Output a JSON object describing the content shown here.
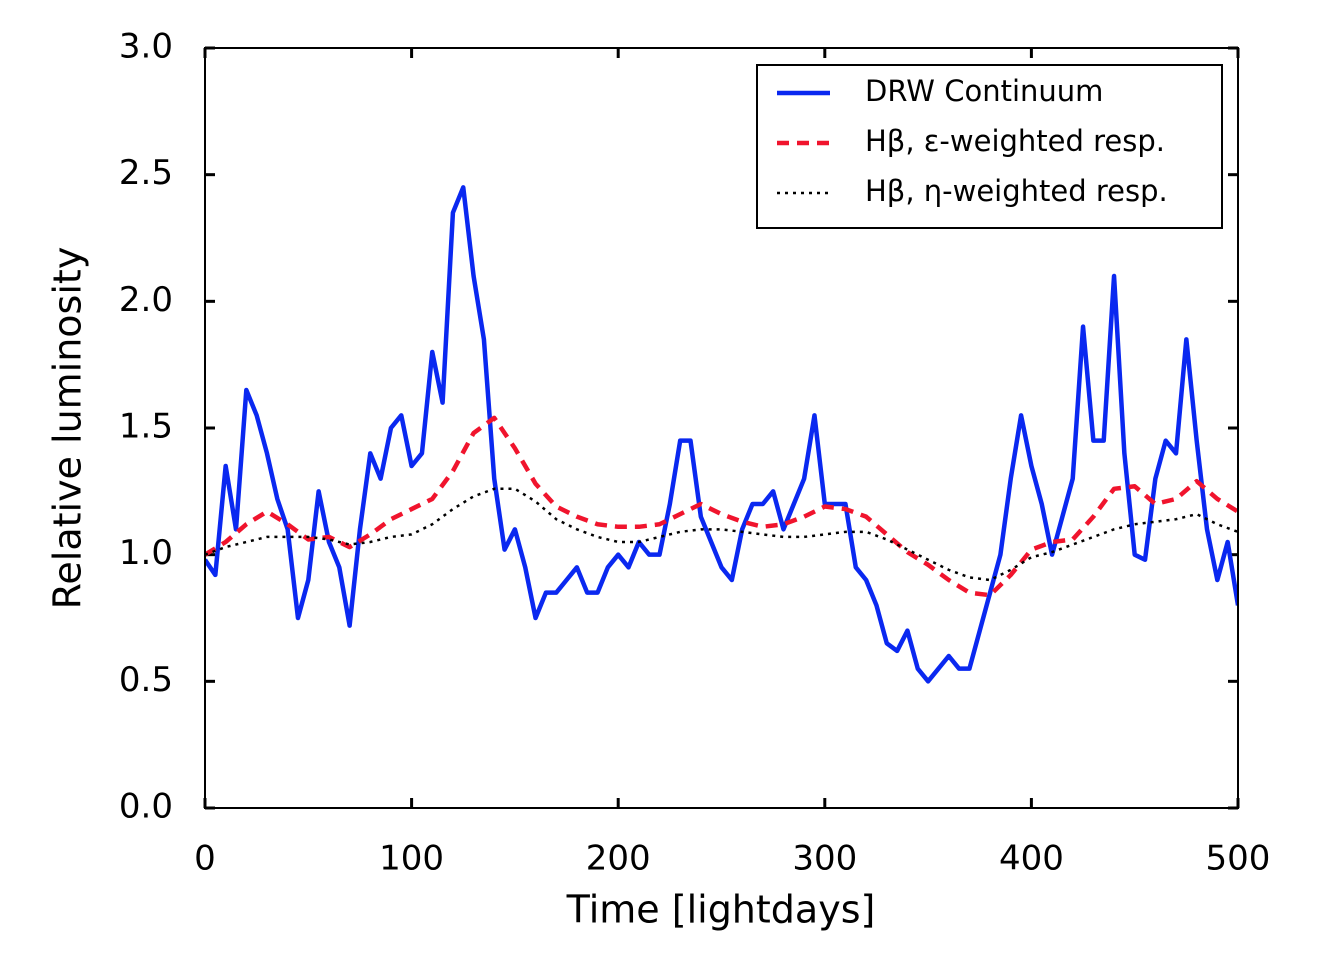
{
  "chart_data": {
    "type": "line",
    "xlabel": "Time [lightdays]",
    "ylabel": "Relative luminosity",
    "xlim": [
      0,
      500
    ],
    "ylim": [
      0,
      3
    ],
    "xticks": [
      0,
      100,
      200,
      300,
      400,
      500
    ],
    "yticks": [
      {
        "value": 0,
        "label": "0.0"
      },
      0.5,
      {
        "value": 1,
        "label": "1.0"
      },
      1.5,
      {
        "value": 2,
        "label": "2.0"
      },
      2.5,
      {
        "value": 3,
        "label": "3.0"
      }
    ],
    "grid": false,
    "legend": "upper right",
    "series": [
      {
        "name": "DRW Continuum",
        "color": "#0a28f0",
        "style": "solid",
        "x": [
          0,
          5,
          10,
          15,
          20,
          25,
          30,
          35,
          40,
          45,
          50,
          55,
          60,
          65,
          70,
          75,
          80,
          85,
          90,
          95,
          100,
          105,
          110,
          115,
          120,
          125,
          130,
          135,
          140,
          145,
          150,
          155,
          160,
          165,
          170,
          175,
          180,
          185,
          190,
          195,
          200,
          205,
          210,
          215,
          220,
          225,
          230,
          235,
          240,
          245,
          250,
          255,
          260,
          265,
          270,
          275,
          280,
          285,
          290,
          295,
          300,
          305,
          310,
          315,
          320,
          325,
          330,
          335,
          340,
          345,
          350,
          355,
          360,
          365,
          370,
          375,
          380,
          385,
          390,
          395,
          400,
          405,
          410,
          415,
          420,
          425,
          430,
          435,
          440,
          445,
          450,
          455,
          460,
          465,
          470,
          475,
          480,
          485,
          490,
          495,
          500
        ],
        "values": [
          0.98,
          0.92,
          1.35,
          1.1,
          1.65,
          1.55,
          1.4,
          1.22,
          1.1,
          0.75,
          0.9,
          1.25,
          1.05,
          0.95,
          0.72,
          1.1,
          1.4,
          1.3,
          1.5,
          1.55,
          1.35,
          1.4,
          1.8,
          1.6,
          2.35,
          2.45,
          2.1,
          1.85,
          1.3,
          1.02,
          1.1,
          0.95,
          0.75,
          0.85,
          0.85,
          0.9,
          0.95,
          0.85,
          0.85,
          0.95,
          1.0,
          0.95,
          1.05,
          1.0,
          1.0,
          1.2,
          1.45,
          1.45,
          1.15,
          1.05,
          0.95,
          0.9,
          1.1,
          1.2,
          1.2,
          1.25,
          1.1,
          1.2,
          1.3,
          1.55,
          1.2,
          1.2,
          1.2,
          0.95,
          0.9,
          0.8,
          0.65,
          0.62,
          0.7,
          0.55,
          0.5,
          0.55,
          0.6,
          0.55,
          0.55,
          0.7,
          0.85,
          1.0,
          1.3,
          1.55,
          1.35,
          1.2,
          1.0,
          1.15,
          1.3,
          1.9,
          1.45,
          1.45,
          2.1,
          1.4,
          1.0,
          0.98,
          1.3,
          1.45,
          1.4,
          1.85,
          1.45,
          1.1,
          0.9,
          1.05,
          0.8
        ]
      },
      {
        "name": "Hβ, ε-weighted resp.",
        "color": "#f0142d",
        "style": "dashed",
        "x": [
          0,
          10,
          20,
          30,
          40,
          50,
          60,
          70,
          80,
          90,
          100,
          110,
          120,
          130,
          140,
          150,
          160,
          170,
          180,
          190,
          200,
          210,
          220,
          230,
          240,
          250,
          260,
          270,
          280,
          290,
          300,
          310,
          320,
          330,
          340,
          350,
          360,
          370,
          380,
          390,
          400,
          410,
          420,
          430,
          440,
          450,
          460,
          470,
          480,
          490,
          500
        ],
        "values": [
          1.0,
          1.05,
          1.12,
          1.17,
          1.12,
          1.06,
          1.07,
          1.03,
          1.08,
          1.14,
          1.18,
          1.22,
          1.33,
          1.48,
          1.54,
          1.42,
          1.28,
          1.19,
          1.15,
          1.12,
          1.11,
          1.11,
          1.12,
          1.16,
          1.2,
          1.16,
          1.13,
          1.11,
          1.12,
          1.15,
          1.19,
          1.18,
          1.15,
          1.08,
          1.01,
          0.96,
          0.9,
          0.85,
          0.84,
          0.92,
          1.02,
          1.05,
          1.06,
          1.15,
          1.26,
          1.27,
          1.2,
          1.22,
          1.29,
          1.22,
          1.17
        ]
      },
      {
        "name": "Hβ, η-weighted resp.",
        "color": "#000000",
        "style": "dotted",
        "x": [
          0,
          10,
          20,
          30,
          40,
          50,
          60,
          70,
          80,
          90,
          100,
          110,
          120,
          130,
          140,
          150,
          160,
          170,
          180,
          190,
          200,
          210,
          220,
          230,
          240,
          250,
          260,
          270,
          280,
          290,
          300,
          310,
          320,
          330,
          340,
          350,
          360,
          370,
          380,
          390,
          400,
          410,
          420,
          430,
          440,
          450,
          460,
          470,
          480,
          490,
          500
        ],
        "values": [
          1.0,
          1.03,
          1.05,
          1.07,
          1.07,
          1.07,
          1.06,
          1.04,
          1.05,
          1.07,
          1.08,
          1.12,
          1.18,
          1.23,
          1.26,
          1.26,
          1.21,
          1.14,
          1.1,
          1.07,
          1.05,
          1.05,
          1.07,
          1.09,
          1.1,
          1.1,
          1.09,
          1.08,
          1.07,
          1.07,
          1.08,
          1.09,
          1.09,
          1.06,
          1.02,
          0.98,
          0.94,
          0.91,
          0.9,
          0.94,
          0.99,
          1.01,
          1.04,
          1.07,
          1.1,
          1.12,
          1.13,
          1.14,
          1.16,
          1.12,
          1.09
        ]
      }
    ]
  }
}
